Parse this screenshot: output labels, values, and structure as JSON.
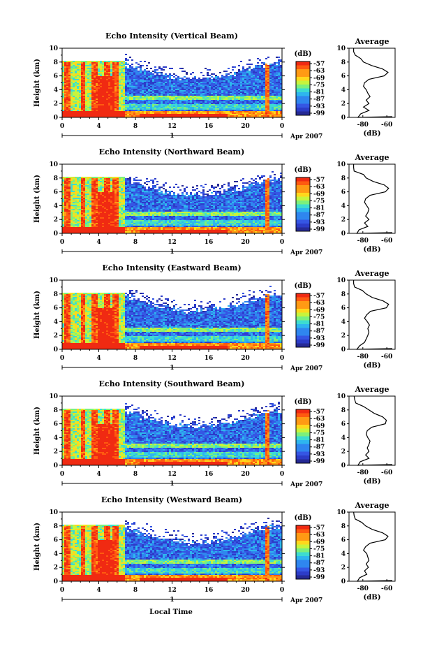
{
  "panels": [
    {
      "title": "Echo Intensity (Vertical Beam)",
      "profile": [
        0.02,
        0.02,
        0.05,
        0.15,
        0.2,
        0.35,
        0.55,
        0.65,
        0.58,
        0.3,
        0.22,
        0.2,
        0.25,
        0.28,
        0.32,
        0.25,
        0.3,
        0.2,
        0.3,
        0.15,
        0.1
      ]
    },
    {
      "title": "Echo Intensity (Northward Beam)",
      "profile": [
        0.02,
        0.02,
        0.03,
        0.2,
        0.25,
        0.38,
        0.58,
        0.66,
        0.6,
        0.32,
        0.24,
        0.22,
        0.26,
        0.3,
        0.28,
        0.24,
        0.3,
        0.22,
        0.28,
        0.12,
        0.08
      ]
    },
    {
      "title": "Echo Intensity (Eastward Beam)",
      "profile": [
        0.02,
        0.02,
        0.04,
        0.18,
        0.25,
        0.36,
        0.56,
        0.66,
        0.62,
        0.33,
        0.26,
        0.22,
        0.27,
        0.31,
        0.28,
        0.3,
        0.28,
        0.25,
        0.22,
        0.13,
        0.08
      ]
    },
    {
      "title": "Echo Intensity (Southward Beam)",
      "profile": [
        0.03,
        0.04,
        0.06,
        0.2,
        0.3,
        0.4,
        0.55,
        0.62,
        0.6,
        0.35,
        0.27,
        0.25,
        0.28,
        0.32,
        0.3,
        0.27,
        0.3,
        0.24,
        0.3,
        0.14,
        0.1
      ]
    },
    {
      "title": "Echo Intensity (Westward Beam)",
      "profile": [
        0.02,
        0.03,
        0.05,
        0.17,
        0.24,
        0.36,
        0.55,
        0.65,
        0.6,
        0.32,
        0.24,
        0.2,
        0.26,
        0.28,
        0.3,
        0.25,
        0.29,
        0.22,
        0.26,
        0.13,
        0.09
      ]
    }
  ],
  "chart_data": {
    "type": "heatmap",
    "y_label": "Height (km)",
    "y_range": [
      0,
      10
    ],
    "y_ticks": [
      "0",
      "2",
      "4",
      "6",
      "8",
      "10"
    ],
    "x_ticks": [
      "0",
      "4",
      "8",
      "12",
      "16",
      "20",
      "0"
    ],
    "x_range_hours": [
      0,
      24
    ],
    "date_marker": "1",
    "date_label": "Apr 2007",
    "x_label": "Local Time",
    "colorbar": {
      "unit": "(dB)",
      "ticks": [
        "-57",
        "-63",
        "-69",
        "-75",
        "-81",
        "-87",
        "-93",
        "-99"
      ],
      "colors": [
        "#ff3010",
        "#ff7a10",
        "#ffd21a",
        "#a0ff40",
        "#30e0d0",
        "#2aa0f0",
        "#3050e0",
        "#2a2aa0"
      ]
    },
    "average": {
      "title": "Average",
      "x_ticks": [
        "-80",
        "-60"
      ],
      "x_label": "(dB)",
      "y_ticks": [
        "0",
        "2",
        "4",
        "6",
        "8",
        "10"
      ]
    }
  }
}
